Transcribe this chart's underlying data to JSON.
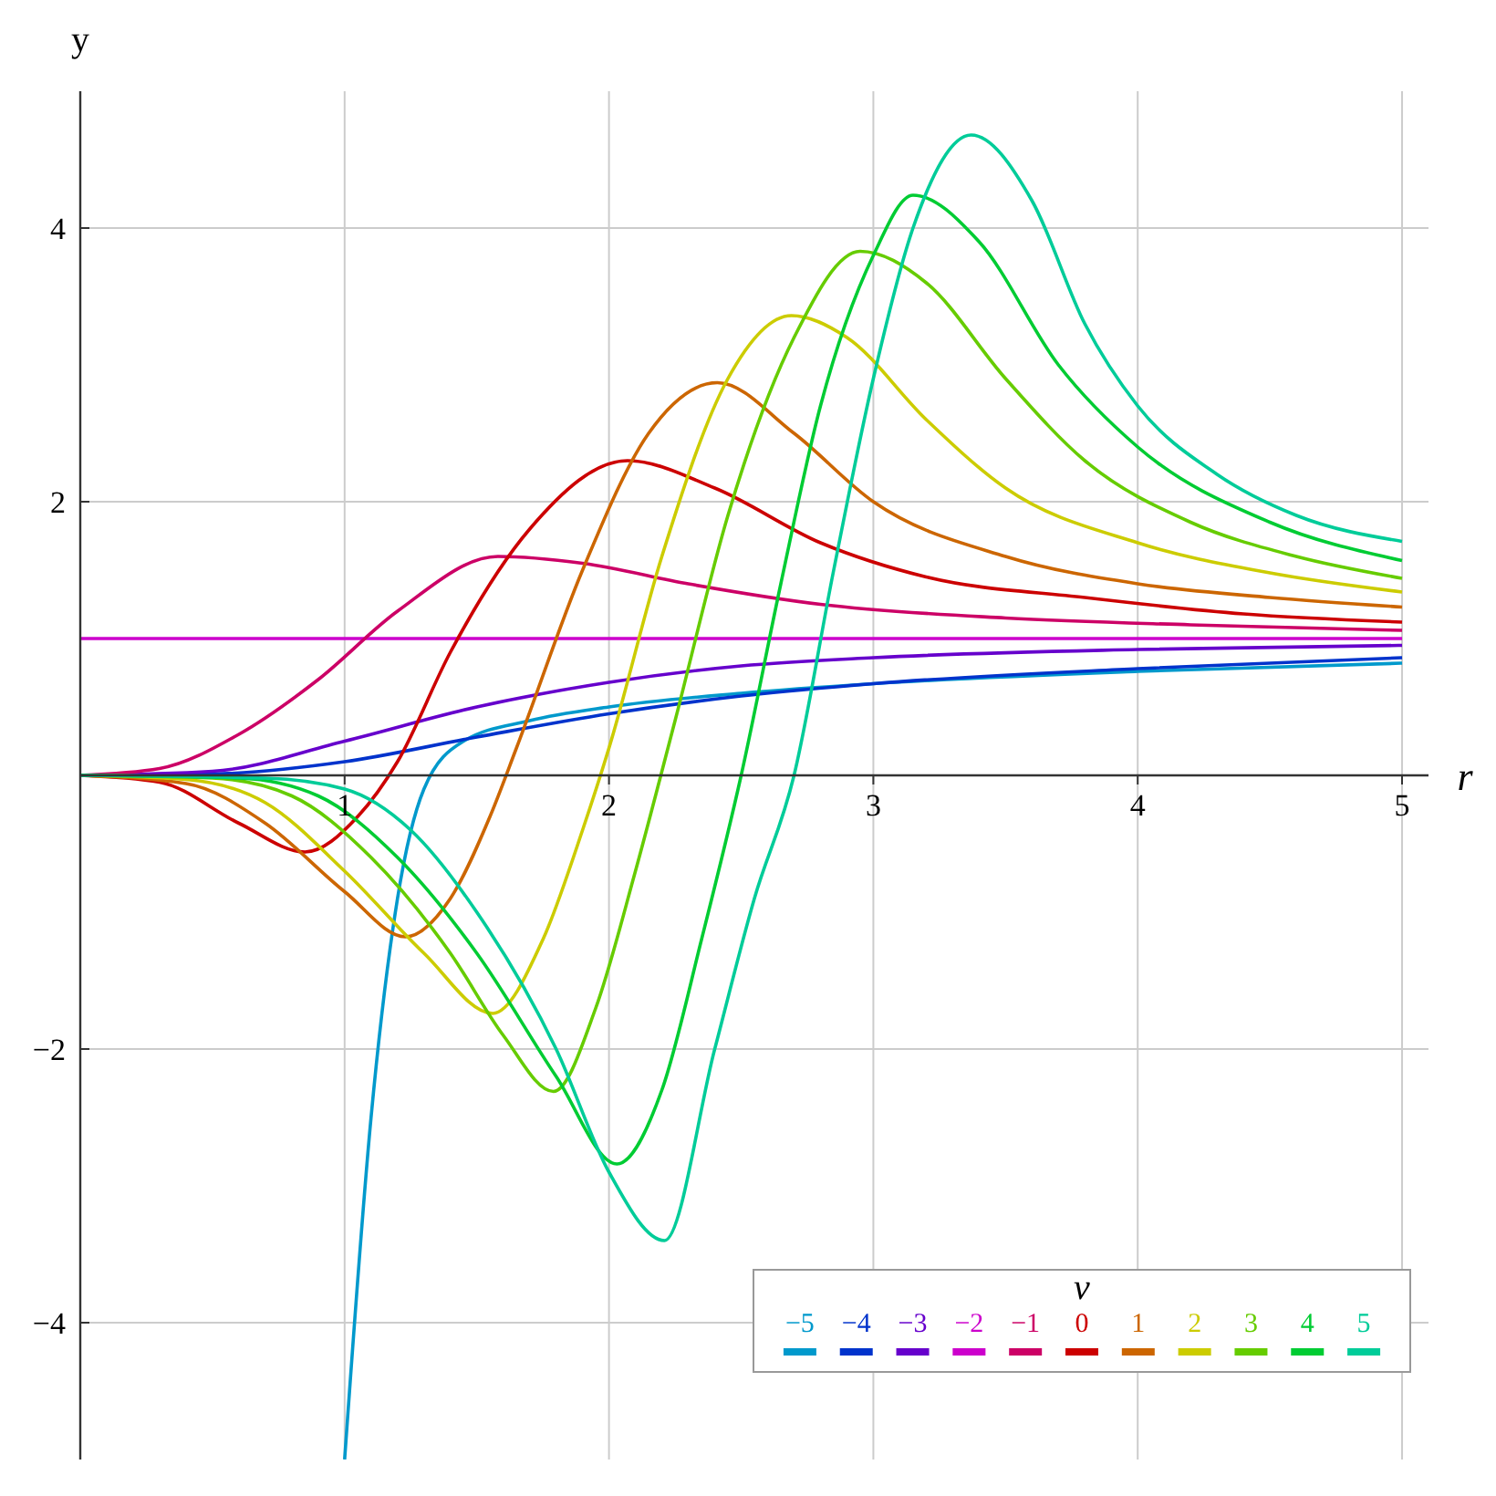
{
  "chart_data": {
    "type": "line",
    "xlabel": "r",
    "ylabel": "y",
    "legend_title": "ν",
    "legend": "bottom right",
    "grid": true,
    "marker": "none",
    "line_style": "solid",
    "xlim": [
      0,
      5.1
    ],
    "ylim": [
      -5,
      5
    ],
    "xticks": [
      1,
      2,
      3,
      4,
      5
    ],
    "yticks": [
      -4,
      -2,
      2,
      4
    ],
    "series": [
      {
        "name": "−5",
        "color": "#0099cc",
        "x": [
          1.0,
          1.1,
          1.2,
          1.3,
          1.45,
          1.7,
          2.0,
          2.5,
          3.0,
          4.0,
          5.0
        ],
        "values": [
          -5,
          -2.5,
          -0.9,
          -0.1,
          0.25,
          0.4,
          0.5,
          0.6,
          0.67,
          0.76,
          0.82
        ]
      },
      {
        "name": "−4",
        "color": "#0033cc",
        "x": [
          0,
          0.5,
          1.0,
          1.5,
          2.0,
          2.5,
          3.0,
          4.0,
          5.0
        ],
        "values": [
          0,
          0.01,
          0.1,
          0.28,
          0.45,
          0.58,
          0.67,
          0.78,
          0.86
        ]
      },
      {
        "name": "−3",
        "color": "#6600cc",
        "x": [
          0,
          0.5,
          1.0,
          1.5,
          2.0,
          2.5,
          3.0,
          4.0,
          5.0
        ],
        "values": [
          0,
          0.03,
          0.25,
          0.5,
          0.68,
          0.8,
          0.86,
          0.92,
          0.95
        ]
      },
      {
        "name": "−2",
        "color": "#cc00cc",
        "x": [
          0,
          5.0
        ],
        "values": [
          1,
          1
        ]
      },
      {
        "name": "−1",
        "color": "#cc0066",
        "x": [
          0,
          0.3,
          0.6,
          0.9,
          1.2,
          1.58,
          1.9,
          2.3,
          2.8,
          3.5,
          4.2,
          5.0
        ],
        "values": [
          0,
          0.05,
          0.3,
          0.7,
          1.2,
          1.6,
          1.55,
          1.4,
          1.25,
          1.15,
          1.1,
          1.06
        ]
      },
      {
        "name": "0",
        "color": "#cc0000",
        "x": [
          0,
          0.3,
          0.6,
          0.85,
          1.05,
          1.2,
          1.4,
          1.7,
          2.07,
          2.4,
          2.8,
          3.2,
          3.8,
          4.4,
          5.0
        ],
        "values": [
          0,
          -0.05,
          -0.35,
          -0.56,
          -0.3,
          0.1,
          0.9,
          1.8,
          2.3,
          2.1,
          1.7,
          1.45,
          1.3,
          1.18,
          1.12
        ]
      },
      {
        "name": "1",
        "color": "#cc6600",
        "x": [
          0,
          0.4,
          0.7,
          1.0,
          1.23,
          1.4,
          1.55,
          1.65,
          1.9,
          2.15,
          2.41,
          2.7,
          3.0,
          3.5,
          4.0,
          4.5,
          5.0
        ],
        "values": [
          0,
          -0.06,
          -0.35,
          -0.85,
          -1.18,
          -0.9,
          -0.3,
          0.2,
          1.5,
          2.5,
          2.87,
          2.5,
          2.0,
          1.6,
          1.4,
          1.3,
          1.23
        ]
      },
      {
        "name": "2",
        "color": "#cccc00",
        "x": [
          0,
          0.4,
          0.7,
          1.0,
          1.3,
          1.56,
          1.75,
          1.9,
          2.0,
          2.2,
          2.45,
          2.69,
          2.9,
          3.2,
          3.5,
          4.0,
          4.5,
          5.0
        ],
        "values": [
          0,
          -0.03,
          -0.2,
          -0.7,
          -1.3,
          -1.74,
          -1.2,
          -0.4,
          0.2,
          1.6,
          2.9,
          3.36,
          3.2,
          2.6,
          2.1,
          1.7,
          1.48,
          1.34
        ]
      },
      {
        "name": "3",
        "color": "#66cc00",
        "x": [
          0,
          0.5,
          0.8,
          1.1,
          1.4,
          1.6,
          1.79,
          1.95,
          2.1,
          2.25,
          2.45,
          2.7,
          2.95,
          3.2,
          3.5,
          3.8,
          4.2,
          4.6,
          5.0
        ],
        "values": [
          0,
          -0.02,
          -0.15,
          -0.6,
          -1.3,
          -1.9,
          -2.31,
          -1.7,
          -0.7,
          0.4,
          1.9,
          3.2,
          3.83,
          3.6,
          2.9,
          2.3,
          1.85,
          1.6,
          1.44
        ]
      },
      {
        "name": "4",
        "color": "#00cc33",
        "x": [
          0,
          0.6,
          0.9,
          1.2,
          1.5,
          1.8,
          2.03,
          2.2,
          2.35,
          2.5,
          2.65,
          2.8,
          3.0,
          3.15,
          3.4,
          3.7,
          4.0,
          4.5,
          5.0
        ],
        "values": [
          0,
          -0.02,
          -0.15,
          -0.6,
          -1.3,
          -2.2,
          -2.84,
          -2.3,
          -1.2,
          0,
          1.4,
          2.7,
          3.8,
          4.24,
          3.9,
          3.0,
          2.4,
          1.85,
          1.57
        ]
      },
      {
        "name": "5",
        "color": "#00cc99",
        "x": [
          0,
          0.7,
          1.0,
          1.25,
          1.5,
          1.8,
          2.0,
          2.21,
          2.4,
          2.55,
          2.7,
          2.85,
          3.0,
          3.15,
          3.37,
          3.6,
          3.8,
          4.0,
          4.3,
          4.6,
          5.0
        ],
        "values": [
          0,
          -0.02,
          -0.1,
          -0.4,
          -1.0,
          -2.0,
          -2.9,
          -3.4,
          -2.0,
          -0.9,
          0,
          1.5,
          2.9,
          4.0,
          4.68,
          4.2,
          3.3,
          2.7,
          2.2,
          1.9,
          1.71
        ]
      }
    ]
  }
}
